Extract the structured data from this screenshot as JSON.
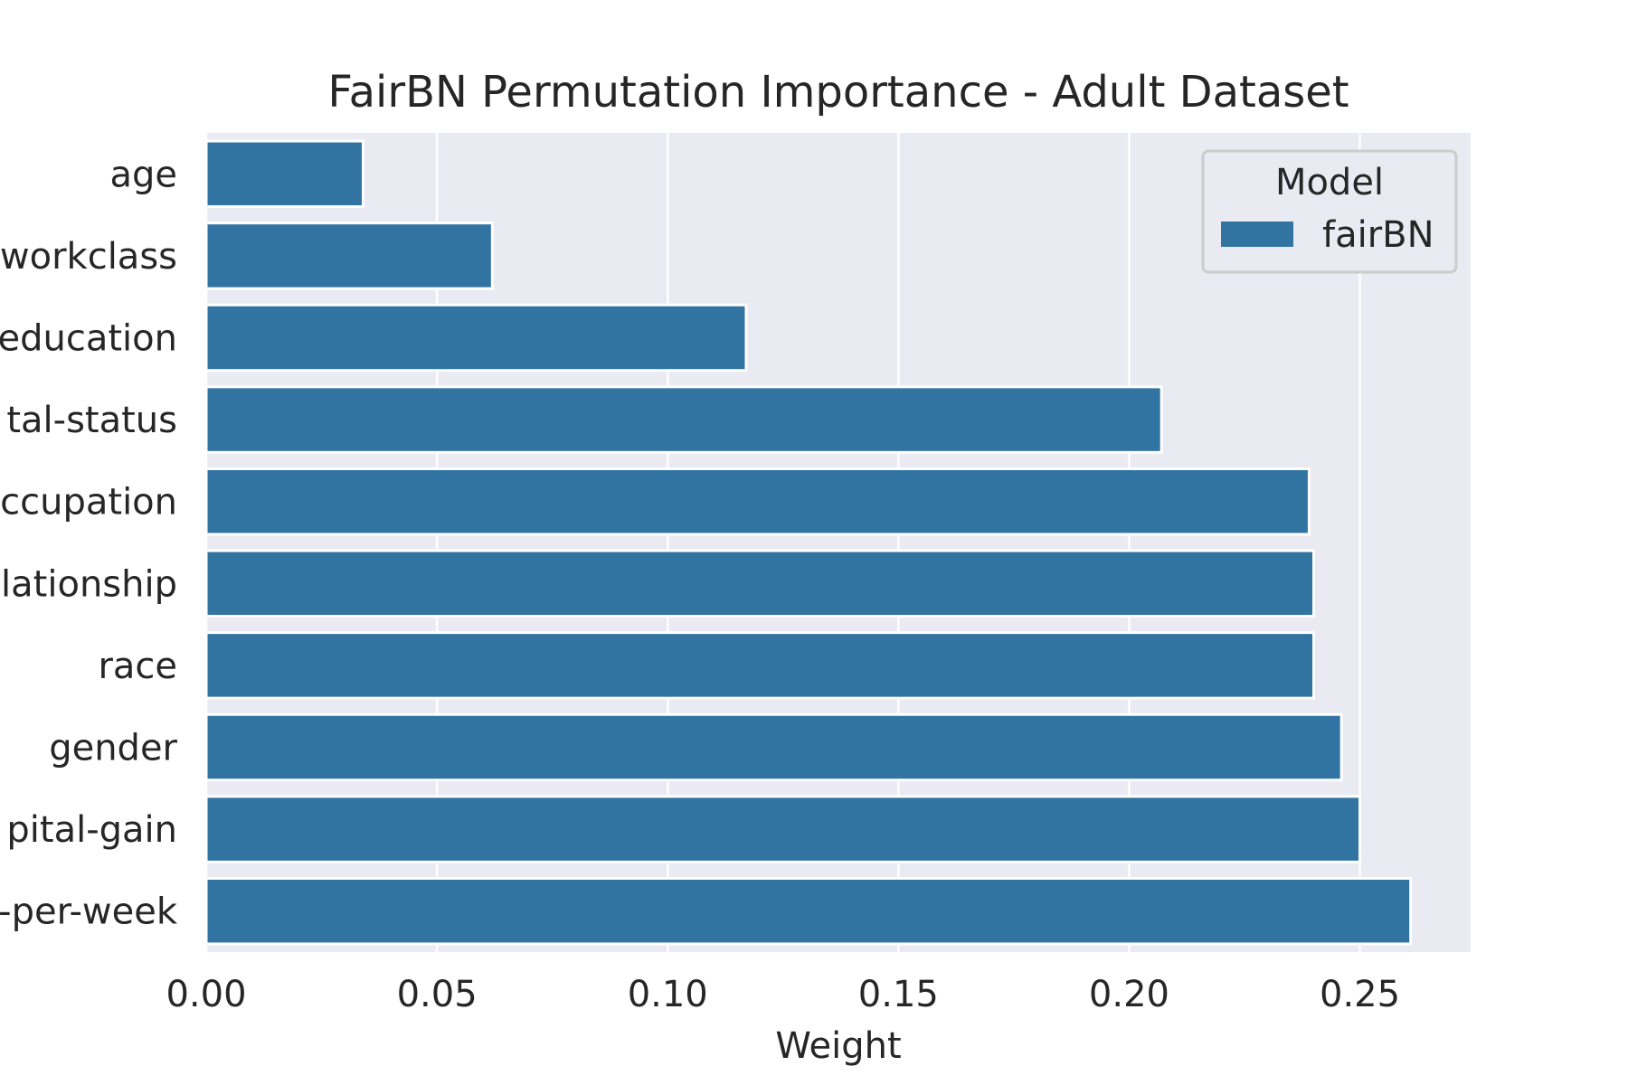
{
  "chart_data": {
    "type": "bar",
    "orientation": "horizontal",
    "title": "FairBN Permutation Importance - Adult Dataset",
    "xlabel": "Weight",
    "ylabel": "",
    "categories": [
      "age",
      "workclass",
      "education",
      "tal-status",
      "ccupation",
      "lationship",
      "race",
      "gender",
      "pital-gain",
      "-per-week"
    ],
    "category_labels_clipped": true,
    "series": [
      {
        "name": "fairBN",
        "color": "#3274a1",
        "values": [
          0.034,
          0.062,
          0.117,
          0.207,
          0.239,
          0.24,
          0.24,
          0.246,
          0.25,
          0.261
        ]
      }
    ],
    "xlim": [
      0,
      0.274
    ],
    "xticks": [
      0.0,
      0.05,
      0.1,
      0.15,
      0.2,
      0.25
    ],
    "xtick_labels": [
      "0.00",
      "0.05",
      "0.10",
      "0.15",
      "0.20",
      "0.25"
    ],
    "grid": true,
    "grid_axis": "x",
    "background_color": "#eaeaf2",
    "grid_color": "#ffffff",
    "legend": {
      "title": "Model",
      "placement": "top-right",
      "entries": [
        "fairBN"
      ]
    }
  }
}
